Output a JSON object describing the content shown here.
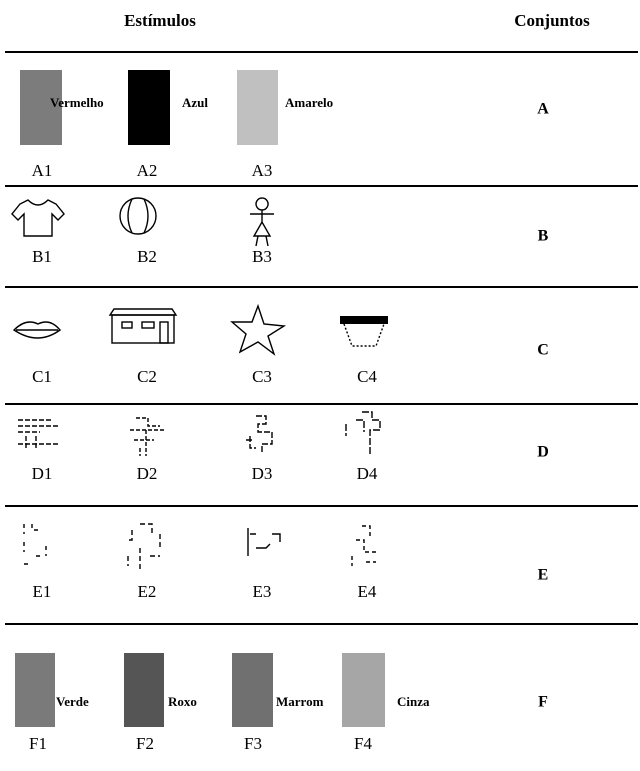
{
  "header": {
    "stimuli": "Estímulos",
    "sets": "Conjuntos"
  },
  "rows": [
    {
      "set": "A",
      "items": [
        {
          "label": "A1",
          "word": "Vermelho"
        },
        {
          "label": "A2",
          "word": "Azul"
        },
        {
          "label": "A3",
          "word": "Amarelo"
        }
      ]
    },
    {
      "set": "B",
      "items": [
        {
          "label": "B1"
        },
        {
          "label": "B2"
        },
        {
          "label": "B3"
        }
      ]
    },
    {
      "set": "C",
      "items": [
        {
          "label": "C1"
        },
        {
          "label": "C2"
        },
        {
          "label": "C3"
        },
        {
          "label": "C4"
        }
      ]
    },
    {
      "set": "D",
      "items": [
        {
          "label": "D1"
        },
        {
          "label": "D2"
        },
        {
          "label": "D3"
        },
        {
          "label": "D4"
        }
      ]
    },
    {
      "set": "E",
      "items": [
        {
          "label": "E1"
        },
        {
          "label": "E2"
        },
        {
          "label": "E3"
        },
        {
          "label": "E4"
        }
      ]
    },
    {
      "set": "F",
      "items": [
        {
          "label": "F1",
          "word": "Verde"
        },
        {
          "label": "F2",
          "word": "Roxo"
        },
        {
          "label": "F3",
          "word": "Marrom"
        },
        {
          "label": "F4",
          "word": "Cinza"
        }
      ]
    }
  ]
}
